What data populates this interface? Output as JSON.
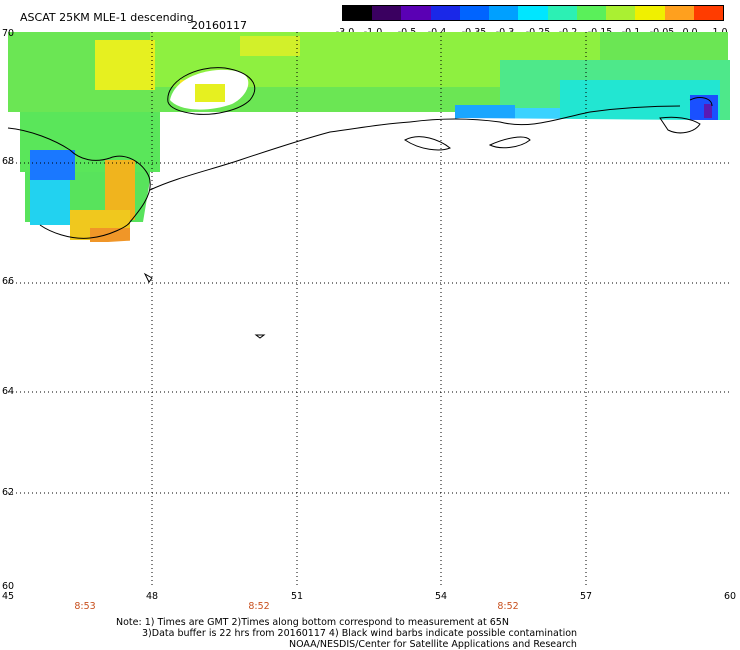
{
  "header": {
    "title": "ASCAT 25KM MLE-1 descending",
    "date": "20160117"
  },
  "colorbar": {
    "labels": [
      "-3.0",
      "-1.0",
      "-0.5",
      "-0.4",
      "-0.35",
      "-0.3",
      "-0.25",
      "-0.2",
      "-0.15",
      "-0.1",
      "-0.05",
      "0.0",
      "1.0"
    ],
    "colors": [
      "#000000",
      "#3a0060",
      "#5a00b4",
      "#1a28e8",
      "#0064ff",
      "#00a0ff",
      "#00e6ff",
      "#2cf0b4",
      "#5af05a",
      "#aaf032",
      "#f0f000",
      "#ffa01e",
      "#ff3c00"
    ]
  },
  "axes": {
    "lat_labels": [
      "70",
      "68",
      "66",
      "64",
      "62",
      "60"
    ],
    "lon_labels": [
      "45",
      "48",
      "51",
      "54",
      "57",
      "60"
    ],
    "time_labels": [
      "8:53",
      "8:52",
      "8:52"
    ]
  },
  "notes": {
    "line1": "Note: 1) Times are GMT 2)Times along bottom correspond to measurement at 65N",
    "line2": "3)Data buffer is 22 hrs from 20160117 4) Black wind barbs indicate possible contamination",
    "line3": "NOAA/NESDIS/Center for Satellite Applications and Research"
  }
}
